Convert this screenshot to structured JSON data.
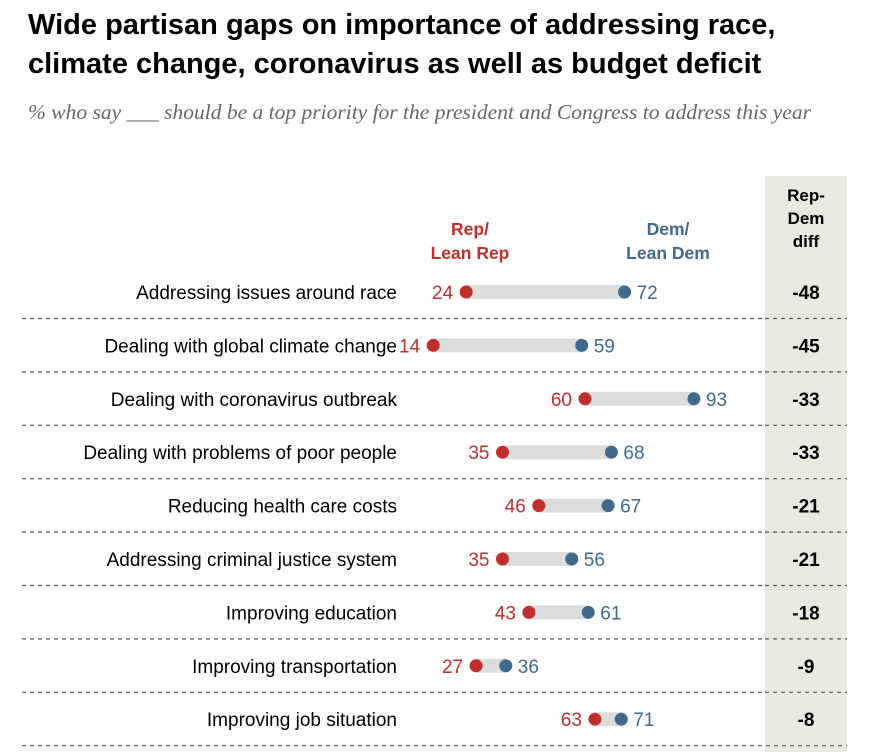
{
  "title": "Wide partisan gaps on importance of addressing race, climate change, coronavirus as well as budget deficit",
  "subtitle": "% who say ___ should be a top priority for the president and Congress to address this year",
  "colors": {
    "rep": "#bf2f2c",
    "dem": "#3f6a8c",
    "bar": "#dcdcdc",
    "diff_column": "#e9e9e0"
  },
  "chart_data": {
    "type": "dot",
    "title": "Wide partisan gaps on importance of addressing race, climate change, coronavirus as well as budget deficit",
    "series": [
      {
        "name": "Rep/ Lean Rep",
        "values": [
          24,
          14,
          60,
          35,
          46,
          35,
          43,
          27,
          63
        ]
      },
      {
        "name": "Dem/ Lean Dem",
        "values": [
          72,
          59,
          93,
          68,
          67,
          56,
          61,
          36,
          71
        ]
      }
    ],
    "diff_header": "Rep- Dem diff",
    "rows": [
      {
        "label": "Addressing issues around race",
        "rep": 24,
        "dem": 72,
        "diff": "-48"
      },
      {
        "label": "Dealing with global climate change",
        "rep": 14,
        "dem": 59,
        "diff": "-45"
      },
      {
        "label": "Dealing with coronavirus outbreak",
        "rep": 60,
        "dem": 93,
        "diff": "-33"
      },
      {
        "label": "Dealing with problems of poor people",
        "rep": 35,
        "dem": 68,
        "diff": "-33"
      },
      {
        "label": "Reducing health care costs",
        "rep": 46,
        "dem": 67,
        "diff": "-21"
      },
      {
        "label": "Addressing criminal justice system",
        "rep": 35,
        "dem": 56,
        "diff": "-21"
      },
      {
        "label": "Improving education",
        "rep": 43,
        "dem": 61,
        "diff": "-18"
      },
      {
        "label": "Improving transportation",
        "rep": 27,
        "dem": 36,
        "diff": "-9"
      },
      {
        "label": "Improving job situation",
        "rep": 63,
        "dem": 71,
        "diff": "-8"
      }
    ]
  },
  "legend": {
    "rep_line1": "Rep/",
    "rep_line2": "Lean Rep",
    "dem_line1": "Dem/",
    "dem_line2": "Lean Dem",
    "diff_line1": "Rep-",
    "diff_line2": "Dem",
    "diff_line3": "diff"
  }
}
